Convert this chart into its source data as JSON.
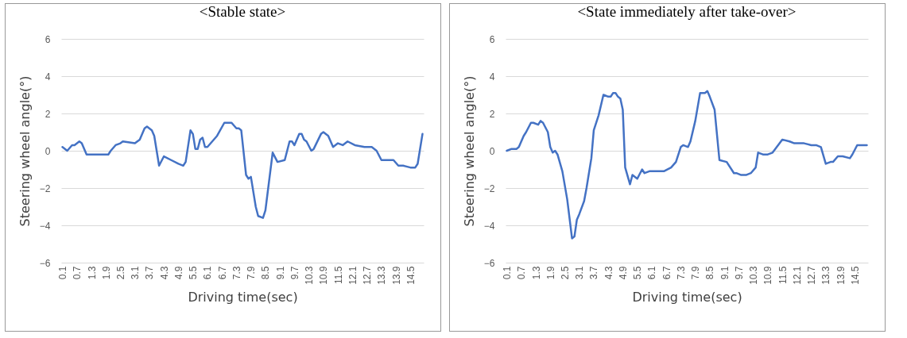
{
  "chart_data": [
    {
      "type": "line",
      "title": "<Stable state>",
      "xlabel": "Driving time(sec)",
      "ylabel": "Steering wheel angle(°)",
      "grid": "y",
      "xlim": [
        0.05,
        15.05
      ],
      "xticks": [
        0.1,
        0.7,
        1.3,
        1.9,
        2.5,
        3.1,
        3.7,
        4.3,
        4.9,
        5.5,
        6.1,
        6.7,
        7.3,
        7.9,
        8.5,
        9.1,
        9.7,
        10.3,
        10.9,
        11.5,
        12.1,
        12.7,
        13.3,
        13.9,
        14.5
      ],
      "ylim": [
        -6,
        6
      ],
      "yticks": [
        -6,
        -4,
        -2,
        0,
        2,
        4,
        6
      ],
      "series": [
        {
          "color": "#4472c4",
          "x": [
            0.1,
            0.3,
            0.5,
            0.6,
            0.8,
            0.9,
            1.1,
            1.4,
            1.7,
            2.0,
            2.1,
            2.3,
            2.5,
            2.6,
            3.1,
            3.3,
            3.5,
            3.6,
            3.8,
            3.9,
            4.1,
            4.3,
            4.6,
            4.9,
            5.1,
            5.2,
            5.4,
            5.5,
            5.6,
            5.7,
            5.8,
            5.9,
            6.0,
            6.1,
            6.5,
            6.8,
            6.9,
            7.1,
            7.3,
            7.4,
            7.5,
            7.7,
            7.8,
            7.9,
            8.1,
            8.2,
            8.4,
            8.5,
            8.8,
            9.0,
            9.3,
            9.5,
            9.6,
            9.7,
            9.9,
            10.0,
            10.1,
            10.2,
            10.4,
            10.5,
            10.8,
            10.9,
            11.1,
            11.3,
            11.5,
            11.7,
            11.9,
            12.2,
            12.6,
            12.9,
            13.1,
            13.3,
            13.4,
            13.8,
            14.0,
            14.2,
            14.5,
            14.7,
            14.8,
            15.0
          ],
          "values": [
            0.2,
            0,
            0.3,
            0.3,
            0.5,
            0.4,
            -0.2,
            -0.2,
            -0.2,
            -0.2,
            0,
            0.3,
            0.4,
            0.5,
            0.4,
            0.6,
            1.2,
            1.3,
            1.1,
            0.8,
            -0.8,
            -0.3,
            -0.5,
            -0.7,
            -0.8,
            -0.6,
            1.1,
            0.9,
            0.1,
            0.1,
            0.6,
            0.7,
            0.2,
            0.2,
            0.8,
            1.5,
            1.5,
            1.5,
            1.2,
            1.2,
            1.1,
            -1.3,
            -1.5,
            -1.4,
            -3.0,
            -3.5,
            -3.6,
            -3.2,
            -0.1,
            -0.6,
            -0.5,
            0.5,
            0.5,
            0.3,
            0.9,
            0.9,
            0.6,
            0.5,
            0,
            0.1,
            0.9,
            1.0,
            0.8,
            0.2,
            0.4,
            0.3,
            0.5,
            0.3,
            0.2,
            0.2,
            0,
            -0.5,
            -0.5,
            -0.5,
            -0.8,
            -0.8,
            -0.9,
            -0.9,
            -0.7,
            0.9
          ]
        }
      ]
    },
    {
      "type": "line",
      "title": "<State immediately after take-over>",
      "xlabel": "Driving time(sec)",
      "ylabel": "Steering wheel angle(°)",
      "grid": "y",
      "xlim": [
        0.05,
        15.05
      ],
      "xticks": [
        0.1,
        0.7,
        1.3,
        1.9,
        2.5,
        3.1,
        3.7,
        4.3,
        4.9,
        5.5,
        6.1,
        6.7,
        7.3,
        7.9,
        8.5,
        9.1,
        9.7,
        10.3,
        10.9,
        11.5,
        12.1,
        12.7,
        13.3,
        13.9,
        14.5
      ],
      "ylim": [
        -6,
        6
      ],
      "yticks": [
        -6,
        -4,
        -2,
        0,
        2,
        4,
        6
      ],
      "series": [
        {
          "color": "#4472c4",
          "x": [
            0.1,
            0.3,
            0.5,
            0.6,
            0.8,
            0.9,
            1.1,
            1.2,
            1.4,
            1.5,
            1.6,
            1.8,
            1.9,
            2.0,
            2.1,
            2.2,
            2.4,
            2.6,
            2.8,
            2.9,
            3.0,
            3.1,
            3.3,
            3.4,
            3.6,
            3.7,
            3.9,
            4.1,
            4.3,
            4.4,
            4.5,
            4.6,
            4.7,
            4.8,
            4.9,
            5.0,
            5.2,
            5.3,
            5.5,
            5.7,
            5.8,
            6.0,
            6.3,
            6.6,
            6.9,
            7.1,
            7.3,
            7.4,
            7.6,
            7.7,
            7.9,
            8.1,
            8.3,
            8.4,
            8.5,
            8.7,
            8.9,
            9.2,
            9.5,
            9.6,
            9.8,
            10.0,
            10.2,
            10.4,
            10.5,
            10.7,
            10.9,
            11.1,
            11.5,
            11.8,
            12.0,
            12.4,
            12.7,
            12.9,
            13.1,
            13.3,
            13.5,
            13.6,
            13.8,
            14.0,
            14.3,
            14.4,
            14.6,
            14.7,
            15.0
          ],
          "values": [
            0,
            0.1,
            0.1,
            0.2,
            0.8,
            1.0,
            1.5,
            1.5,
            1.4,
            1.6,
            1.5,
            1.0,
            0.2,
            -0.1,
            0,
            -0.2,
            -1.1,
            -2.6,
            -4.7,
            -4.6,
            -3.7,
            -3.4,
            -2.7,
            -2.0,
            -0.4,
            1.1,
            1.9,
            3.0,
            2.9,
            2.9,
            3.1,
            3.1,
            2.9,
            2.8,
            2.2,
            -0.9,
            -1.8,
            -1.3,
            -1.5,
            -1.0,
            -1.2,
            -1.1,
            -1.1,
            -1.1,
            -0.9,
            -0.6,
            0.2,
            0.3,
            0.2,
            0.5,
            1.6,
            3.1,
            3.1,
            3.2,
            2.9,
            2.2,
            -0.5,
            -0.6,
            -1.2,
            -1.2,
            -1.3,
            -1.3,
            -1.2,
            -0.9,
            -0.1,
            -0.2,
            -0.2,
            -0.1,
            0.6,
            0.5,
            0.4,
            0.4,
            0.3,
            0.3,
            0.2,
            -0.7,
            -0.6,
            -0.6,
            -0.3,
            -0.3,
            -0.4,
            -0.2,
            0.3,
            0.3,
            0.3
          ]
        }
      ]
    }
  ]
}
